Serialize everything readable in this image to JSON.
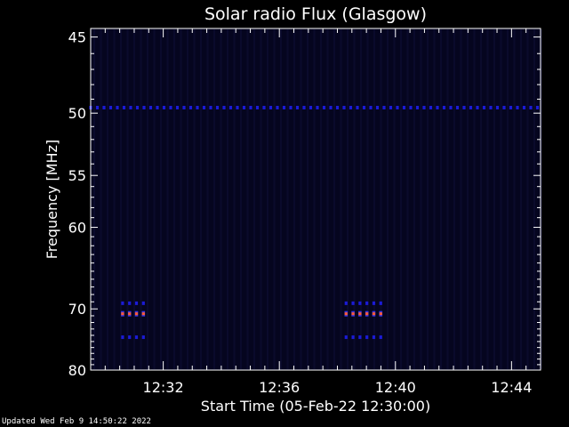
{
  "chart_data": {
    "type": "heatmap",
    "title": "Solar radio Flux (Glasgow)",
    "xlabel": "Start Time (05-Feb-22 12:30:00)",
    "ylabel": "Frequency [MHz]",
    "x_tick_labels": [
      "12:32",
      "12:36",
      "12:40",
      "12:44"
    ],
    "x_tick_minutes": [
      2,
      6,
      10,
      14
    ],
    "xlim_minutes": [
      -0.5,
      15.0
    ],
    "y_tick_labels": [
      "45",
      "50",
      "55",
      "60",
      "70",
      "80"
    ],
    "y_tick_values": [
      45,
      50,
      55,
      60,
      70,
      80
    ],
    "ylim": [
      44.5,
      80.0
    ],
    "y_scale": "reciprocal",
    "colors": {
      "background": "#000000",
      "plot_background": "#05051f",
      "axis": "#ffffff",
      "weak_emission": "#1b1bd6",
      "strong_emission": "#ff5a36"
    },
    "features": [
      {
        "kind": "interference-line",
        "freq_mhz": 49.6,
        "t_start_min": -0.5,
        "t_end_min": 15.0,
        "intensity": "weak"
      },
      {
        "kind": "burst",
        "freq_mhz": 69.2,
        "t_start_min": 0.6,
        "t_end_min": 1.5,
        "intensity": "weak"
      },
      {
        "kind": "burst",
        "freq_mhz": 70.7,
        "t_start_min": 0.6,
        "t_end_min": 1.5,
        "intensity": "strong"
      },
      {
        "kind": "burst",
        "freq_mhz": 74.3,
        "t_start_min": 0.6,
        "t_end_min": 1.5,
        "intensity": "weak"
      },
      {
        "kind": "burst",
        "freq_mhz": 69.2,
        "t_start_min": 8.3,
        "t_end_min": 9.6,
        "intensity": "weak"
      },
      {
        "kind": "burst",
        "freq_mhz": 70.7,
        "t_start_min": 8.3,
        "t_end_min": 9.6,
        "intensity": "strong"
      },
      {
        "kind": "burst",
        "freq_mhz": 74.3,
        "t_start_min": 8.3,
        "t_end_min": 9.6,
        "intensity": "weak"
      }
    ]
  },
  "footer": {
    "updated_text": "Updated Wed Feb  9 14:50:22 2022"
  }
}
